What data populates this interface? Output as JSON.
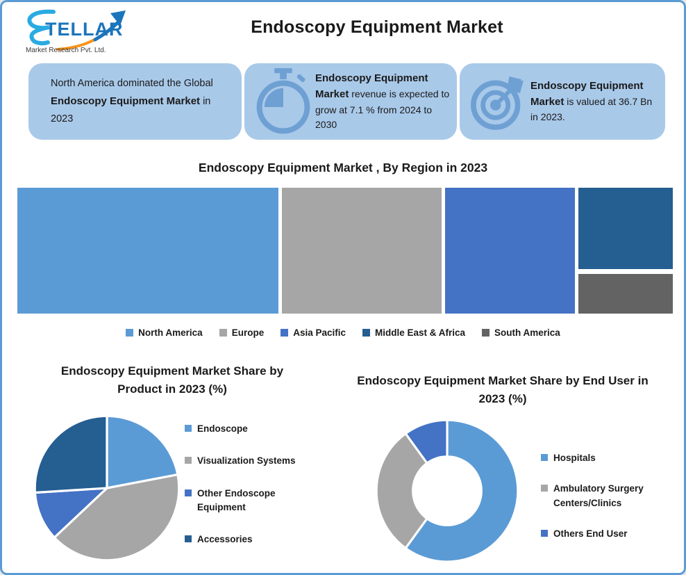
{
  "page": {
    "title": "Endoscopy Equipment Market",
    "border_color": "#5B9BD5",
    "background": "#FFFFFF"
  },
  "logo": {
    "name": "STELLAR",
    "subtitle": "Market Research Pvt. Ltd.",
    "text_color": "#1B75BC",
    "arrow_blue": "#1B75BC",
    "arrow_orange": "#F7941D"
  },
  "colors": {
    "box_bg": "#A9C9E9",
    "icon_blue": "#6FA0D4",
    "light_blue": "#5B9BD5",
    "gray": "#A6A6A6",
    "mid_blue": "#4472C4",
    "dark_blue": "#255E91",
    "dark_gray": "#636363",
    "text": "#1A1A1A"
  },
  "highlight_boxes": [
    {
      "icon": null,
      "segments": [
        {
          "text": "North America dominated the Global ",
          "bold": false
        },
        {
          "text": "Endoscopy Equipment Market",
          "bold": true
        },
        {
          "text": " in 2023",
          "bold": false
        }
      ]
    },
    {
      "icon": "stopwatch-icon",
      "segments": [
        {
          "text": "Endoscopy Equipment Market",
          "bold": true
        },
        {
          "text": " revenue is expected to grow at 7.1 % from 2024 to 2030",
          "bold": false
        }
      ]
    },
    {
      "icon": "target-icon",
      "segments": [
        {
          "text": "Endoscopy Equipment  Market",
          "bold": true
        },
        {
          "text": " is valued at 36.7 Bn in 2023.",
          "bold": false
        }
      ]
    }
  ],
  "chart_data": [
    {
      "type": "treemap",
      "title": "Endoscopy Equipment Market , By Region in 2023",
      "series": [
        {
          "name": "North America",
          "share_pct": 40,
          "color": "#5B9BD5"
        },
        {
          "name": "Europe",
          "share_pct": 25,
          "color": "#A6A6A6"
        },
        {
          "name": "Asia Pacific",
          "share_pct": 20,
          "color": "#4472C4"
        },
        {
          "name": "Middle East & Africa",
          "share_pct": 10,
          "color": "#255E91"
        },
        {
          "name": "South America",
          "share_pct": 5,
          "color": "#636363"
        }
      ],
      "legend_position": "bottom",
      "layout": {
        "column_widths_pct": [
          39.9,
          24.5,
          19.9,
          14.4
        ],
        "columns": [
          {
            "blocks": [
              0
            ]
          },
          {
            "blocks": [
              1
            ]
          },
          {
            "blocks": [
              2
            ]
          },
          {
            "blocks": [
              3,
              4
            ],
            "heights_pct": [
              64.5,
              31.5
            ]
          }
        ]
      }
    },
    {
      "type": "pie",
      "title": "Endoscopy Equipment Market Share by Product in 2023 (%)",
      "labels": [
        "Endoscope",
        "Visualization Systems",
        "Other Endoscope Equipment",
        "Accessories"
      ],
      "values": [
        22,
        41,
        11,
        26
      ],
      "colors": [
        "#5B9BD5",
        "#A6A6A6",
        "#4472C4",
        "#255E91"
      ],
      "inner_radius_ratio": 0,
      "legend_position": "right",
      "start_angle_deg": 0,
      "direction": "clockwise"
    },
    {
      "type": "pie",
      "title": "Endoscopy Equipment Market Share by End User in  2023 (%)",
      "labels": [
        "Hospitals",
        "Ambulatory Surgery Centers/Clinics",
        "Others End User"
      ],
      "values": [
        60,
        30,
        10
      ],
      "colors": [
        "#5B9BD5",
        "#A6A6A6",
        "#4472C4"
      ],
      "inner_radius_ratio": 0.5,
      "legend_position": "right",
      "start_angle_deg": 0,
      "direction": "clockwise"
    }
  ]
}
